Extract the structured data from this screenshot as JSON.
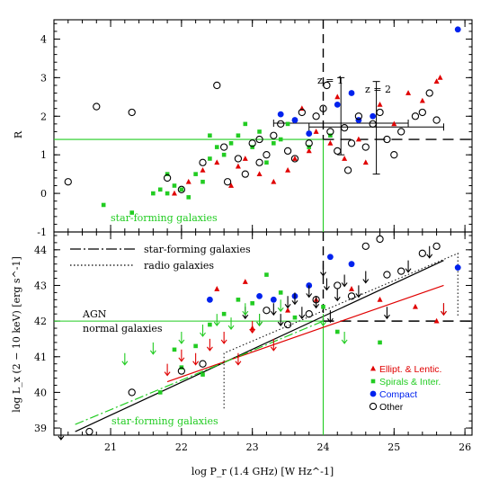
{
  "chart_data": [
    {
      "type": "scatter",
      "panel": "top",
      "ylabel": "R",
      "xlim": [
        20.2,
        26.1
      ],
      "ylim": [
        -1,
        4.5
      ],
      "yticks": [
        "-1",
        "0",
        "1",
        "2",
        "3",
        "4"
      ],
      "reference": {
        "vertical_x": 24.0,
        "horizontal_y": 1.4
      },
      "annotations": {
        "z1": "z = 1",
        "z2": "z = 2",
        "sf": "star-forming galaxies"
      },
      "crosses": [
        {
          "x": 24.25,
          "y": 1.82,
          "xerr": [
            23.3,
            25.2
          ],
          "yerr": [
            1.0,
            3.0
          ]
        },
        {
          "x": 24.75,
          "y": 1.72,
          "xerr": [
            23.8,
            25.7
          ],
          "yerr": [
            0.5,
            2.9
          ]
        }
      ],
      "series": [
        {
          "name": "Ellipt. & Lentic.",
          "color": "#e00000",
          "marker": "triangle",
          "points": [
            [
              21.9,
              0.0
            ],
            [
              22.1,
              0.3
            ],
            [
              22.3,
              0.6
            ],
            [
              22.5,
              0.8
            ],
            [
              22.7,
              0.2
            ],
            [
              22.8,
              0.7
            ],
            [
              22.9,
              0.9
            ],
            [
              23.1,
              0.5
            ],
            [
              23.3,
              0.3
            ],
            [
              23.5,
              0.6
            ],
            [
              23.6,
              0.9
            ],
            [
              23.8,
              1.1
            ],
            [
              23.9,
              1.6
            ],
            [
              24.1,
              1.3
            ],
            [
              24.3,
              0.9
            ],
            [
              24.5,
              1.4
            ],
            [
              24.6,
              0.8
            ],
            [
              24.8,
              2.3
            ],
            [
              25.0,
              1.8
            ],
            [
              25.2,
              2.6
            ],
            [
              25.4,
              2.4
            ],
            [
              25.6,
              2.9
            ],
            [
              25.65,
              3.0
            ],
            [
              24.2,
              2.5
            ],
            [
              23.7,
              2.2
            ]
          ]
        },
        {
          "name": "Spirals & Inter.",
          "color": "#22cc22",
          "marker": "square",
          "points": [
            [
              20.9,
              -0.3
            ],
            [
              21.3,
              -0.5
            ],
            [
              21.6,
              0.0
            ],
            [
              21.7,
              0.1
            ],
            [
              21.8,
              0.0
            ],
            [
              21.9,
              0.2
            ],
            [
              22.0,
              0.1
            ],
            [
              22.1,
              -0.1
            ],
            [
              22.2,
              0.5
            ],
            [
              22.3,
              0.3
            ],
            [
              22.4,
              0.9
            ],
            [
              22.5,
              1.2
            ],
            [
              22.6,
              1.0
            ],
            [
              22.7,
              1.3
            ],
            [
              22.8,
              1.5
            ],
            [
              22.9,
              1.8
            ],
            [
              23.0,
              1.2
            ],
            [
              23.1,
              1.6
            ],
            [
              23.2,
              0.8
            ],
            [
              23.3,
              1.3
            ],
            [
              23.4,
              1.4
            ],
            [
              23.5,
              1.8
            ],
            [
              23.8,
              1.2
            ],
            [
              24.1,
              1.5
            ],
            [
              22.4,
              1.5
            ],
            [
              21.8,
              0.5
            ]
          ]
        },
        {
          "name": "Compact",
          "color": "#0022ee",
          "marker": "dot",
          "points": [
            [
              23.4,
              2.05
            ],
            [
              23.6,
              1.9
            ],
            [
              23.8,
              1.55
            ],
            [
              24.2,
              2.3
            ],
            [
              24.4,
              2.6
            ],
            [
              24.5,
              1.9
            ],
            [
              24.7,
              2.0
            ],
            [
              25.9,
              4.25
            ]
          ]
        },
        {
          "name": "Other",
          "color": "#000000",
          "marker": "circle",
          "points": [
            [
              20.4,
              0.3
            ],
            [
              20.8,
              2.25
            ],
            [
              21.3,
              2.1
            ],
            [
              21.8,
              0.4
            ],
            [
              22.0,
              0.1
            ],
            [
              22.3,
              0.8
            ],
            [
              22.5,
              2.8
            ],
            [
              22.6,
              1.2
            ],
            [
              22.8,
              0.9
            ],
            [
              22.9,
              0.5
            ],
            [
              23.0,
              1.3
            ],
            [
              23.1,
              0.8
            ],
            [
              23.2,
              1.0
            ],
            [
              23.3,
              1.5
            ],
            [
              23.4,
              1.8
            ],
            [
              23.5,
              1.1
            ],
            [
              23.6,
              0.9
            ],
            [
              23.7,
              2.1
            ],
            [
              23.8,
              1.3
            ],
            [
              23.9,
              2.0
            ],
            [
              24.0,
              2.2
            ],
            [
              24.1,
              1.6
            ],
            [
              24.2,
              1.1
            ],
            [
              24.3,
              1.7
            ],
            [
              24.4,
              1.3
            ],
            [
              24.5,
              2.0
            ],
            [
              24.6,
              1.2
            ],
            [
              24.7,
              1.8
            ],
            [
              24.8,
              2.1
            ],
            [
              24.9,
              1.4
            ],
            [
              25.0,
              1.0
            ],
            [
              25.1,
              1.6
            ],
            [
              25.3,
              2.0
            ],
            [
              25.4,
              2.1
            ],
            [
              25.5,
              2.6
            ],
            [
              25.6,
              1.9
            ],
            [
              24.35,
              0.6
            ],
            [
              23.1,
              1.4
            ],
            [
              22.65,
              0.3
            ],
            [
              24.05,
              2.8
            ]
          ]
        }
      ]
    },
    {
      "type": "scatter",
      "panel": "bottom",
      "xlabel": "log P_r (1.4 GHz) [W Hz^-1]",
      "ylabel": "log L_x (2 − 10 keV) [erg s^-1]",
      "xlim": [
        20.2,
        26.1
      ],
      "ylim": [
        38.8,
        44.5
      ],
      "xticks": [
        "21",
        "22",
        "23",
        "24",
        "25",
        "26"
      ],
      "yticks": [
        "39",
        "40",
        "41",
        "42",
        "43",
        "44"
      ],
      "reference": {
        "vertical_x": 24.0,
        "horizontal_y": 42.0
      },
      "legend_lines": [
        {
          "style": "dash-dot",
          "label": "star-forming galaxies"
        },
        {
          "style": "dotted",
          "label": "radio galaxies"
        }
      ],
      "annotations": {
        "agn": "AGN",
        "normal": "normal galaxies",
        "sf": "star-forming galaxies"
      },
      "legend_markers": [
        {
          "label": "Ellipt. & Lentic.",
          "color": "#e00000"
        },
        {
          "label": "Spirals & Inter.",
          "color": "#22cc22"
        },
        {
          "label": "Compact",
          "color": "#0022ee"
        },
        {
          "label": "Other",
          "color": "#000000"
        }
      ],
      "fit_lines": [
        {
          "color": "#000000",
          "style": "solid",
          "from": [
            20.5,
            38.9
          ],
          "to": [
            25.7,
            43.7
          ]
        },
        {
          "color": "#e00000",
          "style": "solid",
          "from": [
            21.8,
            40.3
          ],
          "to": [
            25.7,
            43.0
          ]
        },
        {
          "color": "#22cc22",
          "style": "dash-dot",
          "from": [
            20.5,
            39.1
          ],
          "to": [
            24.0,
            42.0
          ]
        }
      ],
      "radio_region": [
        [
          22.6,
          39.55
        ],
        [
          22.6,
          41.1
        ],
        [
          25.9,
          43.9
        ],
        [
          25.9,
          42.1
        ]
      ],
      "series": [
        {
          "name": "Ellipt. & Lentic.",
          "color": "#e00000",
          "marker": "triangle",
          "points": [
            [
              22.5,
              42.9
            ],
            [
              23.0,
              41.8
            ],
            [
              23.5,
              42.3
            ],
            [
              23.9,
              42.6
            ],
            [
              24.4,
              42.9
            ],
            [
              24.8,
              42.6
            ],
            [
              25.3,
              42.4
            ],
            [
              25.6,
              42.0
            ],
            [
              22.9,
              43.1
            ]
          ]
        },
        {
          "name": "Spirals & Inter.",
          "color": "#22cc22",
          "marker": "square",
          "points": [
            [
              21.7,
              40.0
            ],
            [
              22.0,
              40.7
            ],
            [
              22.2,
              41.3
            ],
            [
              22.4,
              41.9
            ],
            [
              22.6,
              42.2
            ],
            [
              22.8,
              42.6
            ],
            [
              23.0,
              42.5
            ],
            [
              23.2,
              43.3
            ],
            [
              23.4,
              42.8
            ],
            [
              23.6,
              42.1
            ],
            [
              24.0,
              42.4
            ],
            [
              24.2,
              41.7
            ],
            [
              24.8,
              41.4
            ],
            [
              22.3,
              40.5
            ],
            [
              21.9,
              41.2
            ]
          ]
        },
        {
          "name": "Compact",
          "color": "#0022ee",
          "marker": "dot",
          "points": [
            [
              23.1,
              42.7
            ],
            [
              23.3,
              42.6
            ],
            [
              23.6,
              42.7
            ],
            [
              23.8,
              43.0
            ],
            [
              24.1,
              43.8
            ],
            [
              24.4,
              43.6
            ],
            [
              25.9,
              43.5
            ],
            [
              22.4,
              42.6
            ]
          ]
        },
        {
          "name": "Other",
          "color": "#000000",
          "marker": "circle",
          "points": [
            [
              20.7,
              38.9
            ],
            [
              21.3,
              40.0
            ],
            [
              22.0,
              40.6
            ],
            [
              22.3,
              40.8
            ],
            [
              23.2,
              42.3
            ],
            [
              23.5,
              41.9
            ],
            [
              23.8,
              42.2
            ],
            [
              24.2,
              43.0
            ],
            [
              24.4,
              42.7
            ],
            [
              24.8,
              44.3
            ],
            [
              24.9,
              43.3
            ],
            [
              25.1,
              43.4
            ],
            [
              25.4,
              43.9
            ],
            [
              25.6,
              44.1
            ],
            [
              24.6,
              44.1
            ],
            [
              23.9,
              42.6
            ]
          ]
        },
        {
          "name": "upper limits",
          "color": "#000000",
          "marker": "arrow-down",
          "points": [
            [
              20.3,
              38.8
            ],
            [
              22.9,
              42.2
            ],
            [
              23.1,
              42.0
            ],
            [
              23.3,
              42.3
            ],
            [
              23.4,
              42.0
            ],
            [
              23.5,
              42.5
            ],
            [
              23.6,
              42.6
            ],
            [
              23.7,
              42.2
            ],
            [
              23.8,
              42.8
            ],
            [
              23.9,
              42.5
            ],
            [
              24.0,
              43.4
            ],
            [
              24.05,
              43.0
            ],
            [
              24.1,
              42.1
            ],
            [
              24.2,
              42.7
            ],
            [
              24.3,
              43.1
            ],
            [
              24.5,
              42.8
            ],
            [
              24.6,
              43.2
            ],
            [
              24.9,
              42.2
            ],
            [
              25.2,
              43.5
            ],
            [
              25.5,
              43.9
            ],
            [
              25.7,
              42.3
            ]
          ]
        },
        {
          "name": "upper limits red",
          "color": "#e00000",
          "marker": "arrow-down",
          "points": [
            [
              21.8,
              40.6
            ],
            [
              22.0,
              41.0
            ],
            [
              22.2,
              40.9
            ],
            [
              22.4,
              41.3
            ],
            [
              22.6,
              41.5
            ],
            [
              22.8,
              40.9
            ],
            [
              23.0,
              41.8
            ],
            [
              23.3,
              41.3
            ],
            [
              25.7,
              42.3
            ]
          ]
        },
        {
          "name": "upper limits green",
          "color": "#22cc22",
          "marker": "arrow-down",
          "points": [
            [
              21.2,
              40.9
            ],
            [
              21.6,
              41.2
            ],
            [
              22.0,
              41.5
            ],
            [
              22.3,
              41.7
            ],
            [
              22.5,
              42.0
            ],
            [
              22.7,
              41.9
            ],
            [
              22.9,
              42.3
            ],
            [
              23.1,
              42.0
            ],
            [
              23.4,
              42.4
            ],
            [
              24.0,
              42.0
            ],
            [
              24.3,
              41.5
            ]
          ]
        }
      ]
    }
  ]
}
